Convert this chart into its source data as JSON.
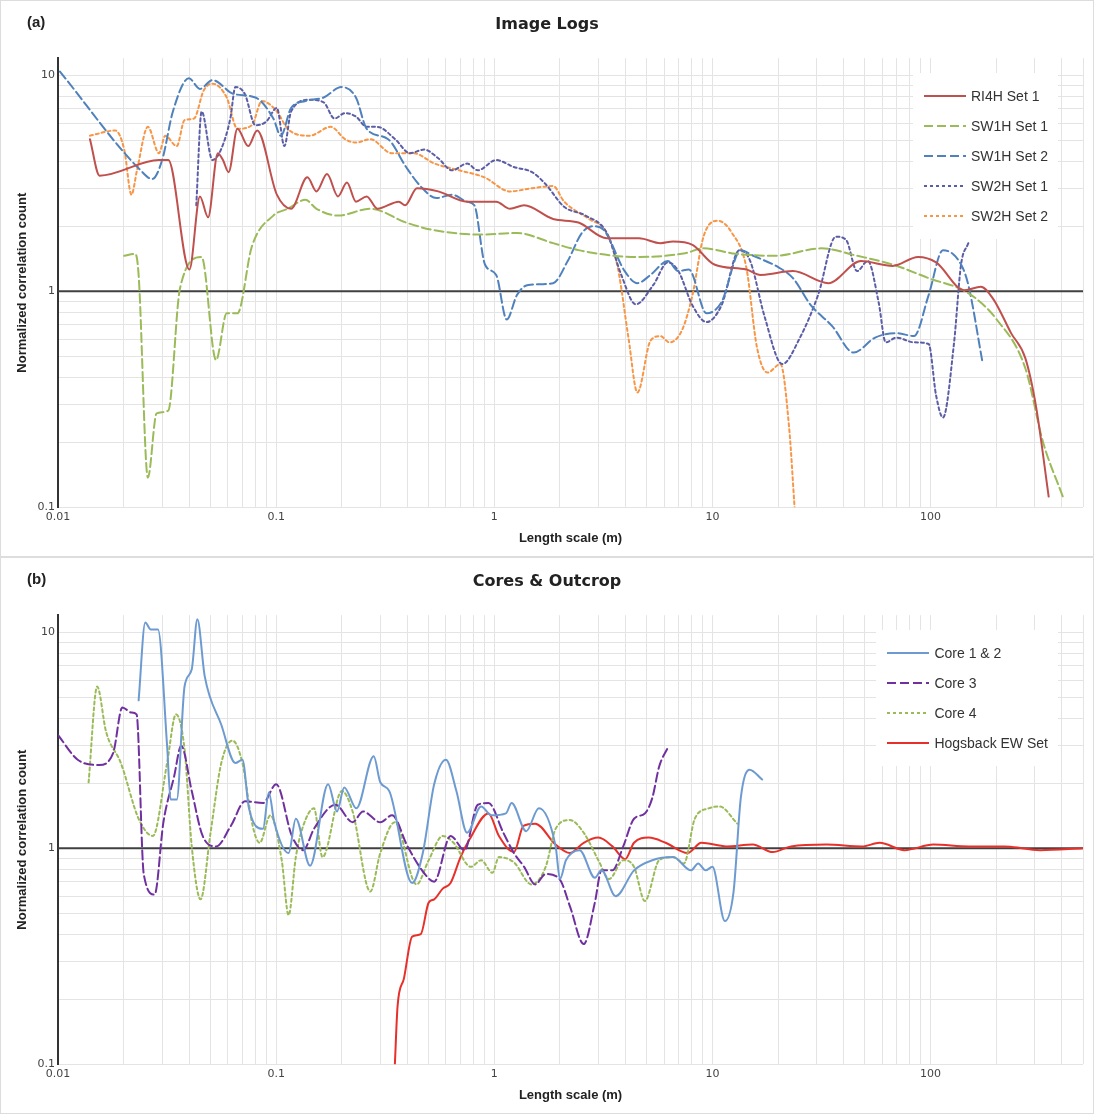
{
  "chart_data": [
    {
      "type": "line",
      "title": "Image Logs",
      "annotations": [
        "(a)"
      ],
      "xlabel": "Length scale (m)",
      "ylabel": "Normalized correlation count",
      "log": "xy",
      "xlim": [
        0.01,
        500
      ],
      "ylim": [
        0.1,
        12
      ],
      "xticks": [
        0.01,
        0.1,
        1,
        10,
        100
      ],
      "yticks": [
        0.1,
        1,
        10
      ],
      "grid": true,
      "legend": "top right",
      "ref_lines": [
        {
          "axis": "y",
          "value": 1,
          "color": "#404040"
        }
      ],
      "series": [
        {
          "name": "RI4H Set 1",
          "color": "#c0504d",
          "line_style": "solid",
          "x": [
            0.014,
            0.0155,
            0.029,
            0.032,
            0.04,
            0.0447,
            0.0487,
            0.054,
            0.057,
            0.0605,
            0.0664,
            0.0744,
            0.0818,
            0.1007,
            0.117,
            0.139,
            0.153,
            0.171,
            0.192,
            0.211,
            0.232,
            0.26,
            0.291,
            0.365,
            0.39,
            0.442,
            0.553,
            0.75,
            1.02,
            1.18,
            1.37,
            1.86,
            2.43,
            3.28,
            4.61,
            5.78,
            6.6,
            8.1,
            10.2,
            14.3,
            16.6,
            23.4,
            34,
            47.9,
            67,
            87.7,
            106,
            143,
            170,
            194,
            234,
            272,
            305,
            348
          ],
          "values": [
            5.06,
            3.43,
            4.05,
            4.05,
            1.26,
            2.75,
            2.2,
            4.36,
            4.05,
            3.56,
            5.65,
            4.7,
            5.55,
            2.8,
            2.41,
            3.37,
            2.9,
            3.49,
            2.75,
            3.19,
            2.6,
            2.75,
            2.41,
            2.6,
            2.5,
            3.0,
            2.9,
            2.6,
            2.6,
            2.41,
            2.5,
            2.16,
            2.08,
            1.76,
            1.76,
            1.67,
            1.7,
            1.64,
            1.33,
            1.26,
            1.19,
            1.24,
            1.09,
            1.38,
            1.31,
            1.44,
            1.36,
            1.01,
            1.05,
            0.92,
            0.64,
            0.49,
            0.29,
            0.112
          ]
        },
        {
          "name": "SW1H Set 1",
          "color": "#9bbb59",
          "line_style": "dashed",
          "x": [
            0.0201,
            0.0226,
            0.0234,
            0.0258,
            0.0283,
            0.032,
            0.0362,
            0.0455,
            0.053,
            0.0593,
            0.0664,
            0.0773,
            0.097,
            0.113,
            0.136,
            0.153,
            0.192,
            0.27,
            0.394,
            0.514,
            0.873,
            1.27,
            1.86,
            2.43,
            3.54,
            4.45,
            7.5,
            9.1,
            12.8,
            19.4,
            31.6,
            46,
            67,
            98,
            149,
            201,
            272,
            328,
            404
          ],
          "values": [
            1.46,
            1.49,
            1.19,
            0.137,
            0.272,
            0.28,
            1.03,
            1.44,
            0.48,
            0.79,
            0.79,
            1.61,
            2.24,
            2.41,
            2.65,
            2.41,
            2.24,
            2.41,
            2.08,
            1.93,
            1.83,
            1.86,
            1.67,
            1.55,
            1.46,
            1.44,
            1.5,
            1.58,
            1.49,
            1.46,
            1.58,
            1.46,
            1.33,
            1.15,
            0.98,
            0.74,
            0.44,
            0.2,
            0.112
          ]
        },
        {
          "name": "SW1H Set 2",
          "color": "#4f81bd",
          "line_style": "dashed",
          "x": [
            0.0102,
            0.0239,
            0.027,
            0.03,
            0.0336,
            0.0398,
            0.0447,
            0.051,
            0.064,
            0.0803,
            0.097,
            0.105,
            0.117,
            0.136,
            0.165,
            0.199,
            0.232,
            0.26,
            0.326,
            0.394,
            0.458,
            0.543,
            0.64,
            0.75,
            0.81,
            0.906,
            1.02,
            1.14,
            1.27,
            1.43,
            1.86,
            2.17,
            2.52,
            2.83,
            3.16,
            3.96,
            4.53,
            5.2,
            6.24,
            6.98,
            7.8,
            9.4,
            11,
            13.5,
            15.4,
            20.1,
            23.4,
            28.3,
            35.4,
            44.4,
            55.7,
            69.8,
            84,
            98,
            114,
            138,
            149,
            173
          ],
          "values": [
            10.4,
            3.63,
            3.31,
            4.05,
            6.8,
            9.68,
            8.65,
            9.5,
            8.19,
            7.89,
            6.31,
            5.25,
            7.06,
            7.6,
            7.89,
            8.82,
            7.89,
            5.65,
            5.06,
            3.76,
            3.07,
            2.7,
            2.8,
            2.6,
            2.5,
            1.33,
            1.19,
            0.74,
            0.96,
            1.07,
            1.09,
            1.38,
            1.86,
            2.0,
            1.93,
            1.24,
            1.09,
            1.19,
            1.38,
            1.24,
            1.26,
            0.79,
            0.89,
            1.55,
            1.46,
            1.29,
            1.15,
            0.86,
            0.69,
            0.52,
            0.61,
            0.64,
            0.62,
            0.96,
            1.55,
            1.33,
            1.07,
            0.47
          ]
        },
        {
          "name": "SW2H Set 1",
          "color": "#5b5ea6",
          "line_style": "dotted",
          "x": [
            0.043,
            0.0455,
            0.051,
            0.0558,
            0.0616,
            0.065,
            0.0718,
            0.0803,
            0.09,
            0.1007,
            0.109,
            0.117,
            0.142,
            0.165,
            0.185,
            0.207,
            0.232,
            0.26,
            0.291,
            0.351,
            0.41,
            0.477,
            0.553,
            0.64,
            0.75,
            0.84,
            1.02,
            1.23,
            1.49,
            1.72,
            2.09,
            2.62,
            3.28,
            3.82,
            4.45,
            5.36,
            6.24,
            6.98,
            8.1,
            9.4,
            11,
            13.3,
            14.9,
            17.3,
            20.9,
            25.2,
            30.5,
            36.8,
            41,
            46,
            51.6,
            57.8,
            62.3,
            69.8,
            84,
            98,
            106,
            114,
            128,
            138,
            149
          ],
          "values": [
            2.5,
            6.8,
            4.05,
            4.53,
            6.31,
            8.82,
            8.19,
            5.87,
            6.1,
            7.06,
            4.7,
            6.8,
            7.7,
            7.5,
            6.31,
            6.68,
            6.44,
            5.77,
            5.77,
            5.06,
            4.36,
            4.53,
            4.13,
            3.63,
            3.9,
            3.63,
            4.05,
            3.76,
            3.56,
            3.13,
            2.46,
            2.24,
            1.86,
            1.19,
            0.87,
            1.07,
            1.36,
            1.24,
            0.86,
            0.72,
            0.86,
            1.55,
            1.38,
            0.77,
            0.46,
            0.61,
            0.96,
            1.79,
            1.73,
            1.24,
            1.38,
            0.89,
            0.58,
            0.61,
            0.58,
            0.57,
            0.33,
            0.26,
            0.57,
            1.33,
            1.67
          ]
        },
        {
          "name": "SW2H Set 2",
          "color": "#f79646",
          "line_style": "dotted",
          "x": [
            0.014,
            0.0183,
            0.0201,
            0.0217,
            0.023,
            0.0258,
            0.029,
            0.031,
            0.035,
            0.038,
            0.042,
            0.0465,
            0.051,
            0.0593,
            0.0664,
            0.0773,
            0.086,
            0.1007,
            0.113,
            0.142,
            0.178,
            0.207,
            0.232,
            0.27,
            0.338,
            0.425,
            0.533,
            0.69,
            0.9,
            1.18,
            1.49,
            1.86,
            2.09,
            2.72,
            3.28,
            3.68,
            4.12,
            4.53,
            5.2,
            5.78,
            6.35,
            7.25,
            8.1,
            9.1,
            10.6,
            12.3,
            14.3,
            16,
            17.9,
            20.5,
            22.5,
            23.8
          ],
          "values": [
            5.25,
            5.55,
            4.53,
            2.8,
            3.63,
            5.77,
            4.36,
            5.25,
            4.7,
            6.2,
            6.31,
            8.5,
            9.15,
            7.89,
            5.65,
            5.87,
            7.6,
            6.8,
            5.65,
            5.25,
            5.77,
            5.06,
            4.88,
            5.06,
            4.36,
            4.36,
            3.9,
            3.63,
            3.37,
            2.9,
            3.0,
            3.07,
            2.6,
            2.16,
            1.86,
            1.29,
            0.61,
            0.34,
            0.59,
            0.62,
            0.58,
            0.66,
            0.96,
            1.79,
            2.12,
            1.86,
            1.29,
            0.55,
            0.42,
            0.46,
            0.23,
            0.1
          ]
        }
      ]
    },
    {
      "type": "line",
      "title": "Cores & Outcrop",
      "annotations": [
        "(b)"
      ],
      "xlabel": "Length scale (m)",
      "ylabel": "Normalized correlation count",
      "log": "xy",
      "xlim": [
        0.01,
        500
      ],
      "ylim": [
        0.1,
        12
      ],
      "xticks": [
        0.01,
        0.1,
        1,
        10,
        100
      ],
      "yticks": [
        0.1,
        1,
        10
      ],
      "grid": true,
      "legend": "top right",
      "ref_lines": [
        {
          "axis": "y",
          "value": 1,
          "color": "#404040"
        }
      ],
      "series": [
        {
          "name": "Core 1 & 2",
          "color": "#6d9bd1",
          "line_style": "solid",
          "x": [
            0.0234,
            0.0251,
            0.0266,
            0.0287,
            0.0316,
            0.0328,
            0.035,
            0.038,
            0.041,
            0.0435,
            0.047,
            0.056,
            0.065,
            0.07,
            0.075,
            0.087,
            0.0925,
            0.098,
            0.114,
            0.123,
            0.143,
            0.173,
            0.19,
            0.205,
            0.233,
            0.28,
            0.3,
            0.33,
            0.42,
            0.47,
            0.53,
            0.6,
            0.67,
            0.75,
            0.87,
            0.97,
            1.13,
            1.2,
            1.4,
            1.6,
            1.91,
            2.0,
            2.13,
            2.46,
            2.89,
            3.1,
            3.6,
            4.37,
            5.3,
            6.6,
            7.98,
            8.6,
            9.3,
            10,
            11.4,
            12.5,
            13.5,
            14.8,
            16.9
          ],
          "values": [
            4.84,
            11.1,
            10.3,
            10.3,
            2.99,
            1.68,
            1.68,
            5.61,
            6.74,
            11.5,
            6.27,
            3.73,
            2.48,
            2.57,
            1.53,
            1.23,
            1.81,
            1.32,
            0.95,
            1.37,
            0.83,
            1.98,
            1.48,
            1.91,
            1.53,
            2.67,
            2.02,
            1.84,
            0.69,
            0.95,
            1.98,
            2.57,
            1.84,
            1.18,
            1.56,
            1.42,
            1.45,
            1.62,
            1.2,
            1.53,
            1.02,
            0.72,
            0.88,
            0.98,
            0.73,
            0.79,
            0.6,
            0.79,
            0.88,
            0.91,
            0.79,
            0.85,
            0.79,
            0.82,
            0.46,
            0.63,
            1.72,
            2.31,
            2.08
          ]
        },
        {
          "name": "Core 3",
          "color": "#7030a0",
          "line_style": "dashed",
          "x": [
            0.01,
            0.0123,
            0.0154,
            0.0179,
            0.0197,
            0.0217,
            0.0229,
            0.0247,
            0.0277,
            0.0304,
            0.034,
            0.0367,
            0.041,
            0.046,
            0.053,
            0.062,
            0.072,
            0.087,
            0.1,
            0.118,
            0.133,
            0.149,
            0.187,
            0.224,
            0.25,
            0.3,
            0.34,
            0.4,
            0.48,
            0.53,
            0.63,
            0.73,
            0.84,
            0.94,
            1.1,
            1.23,
            1.37,
            1.54,
            1.72,
            1.99,
            2.22,
            2.57,
            2.89,
            3.1,
            3.48,
            3.9,
            4.37,
            4.9,
            5.3,
            5.7,
            6.25
          ],
          "values": [
            3.34,
            2.57,
            2.43,
            2.77,
            4.49,
            4.25,
            4.17,
            0.76,
            0.61,
            1.32,
            2.14,
            2.98,
            1.84,
            1.14,
            1.02,
            1.27,
            1.65,
            1.62,
            1.98,
            1.14,
            0.98,
            1.23,
            1.59,
            1.32,
            1.48,
            1.32,
            1.42,
            1.02,
            0.76,
            0.7,
            1.14,
            0.98,
            1.59,
            1.62,
            1.18,
            0.95,
            0.82,
            0.68,
            0.76,
            0.72,
            0.54,
            0.36,
            0.56,
            0.79,
            0.79,
            1.02,
            1.37,
            1.45,
            1.71,
            2.39,
            2.93
          ]
        },
        {
          "name": "Core 4",
          "color": "#9bbb59",
          "line_style": "dotted",
          "x": [
            0.0138,
            0.0151,
            0.0166,
            0.0194,
            0.0234,
            0.0272,
            0.0316,
            0.0347,
            0.038,
            0.041,
            0.045,
            0.05,
            0.056,
            0.063,
            0.07,
            0.078,
            0.084,
            0.094,
            0.106,
            0.114,
            0.123,
            0.133,
            0.149,
            0.163,
            0.2,
            0.224,
            0.27,
            0.3,
            0.35,
            0.44,
            0.5,
            0.58,
            0.65,
            0.78,
            0.87,
            0.98,
            1.05,
            1.23,
            1.48,
            1.72,
            1.91,
            2.22,
            2.57,
            3.0,
            3.36,
            3.9,
            4.37,
            4.9,
            5.7,
            6.6,
            7.4,
            8.3,
            9.6,
            10.8,
            13.0
          ],
          "values": [
            2.02,
            5.61,
            3.46,
            2.48,
            1.37,
            1.14,
            2.48,
            4.17,
            2.87,
            1.02,
            0.58,
            1.18,
            2.48,
            3.15,
            2.48,
            1.27,
            1.06,
            1.42,
            0.88,
            0.49,
            0.91,
            1.27,
            1.53,
            0.91,
            1.84,
            1.48,
            0.63,
            0.95,
            1.32,
            0.68,
            0.88,
            1.14,
            1.06,
            0.82,
            0.88,
            0.77,
            0.91,
            0.86,
            0.68,
            0.82,
            1.23,
            1.35,
            1.18,
            0.88,
            0.72,
            0.88,
            0.82,
            0.57,
            0.88,
            0.91,
            0.85,
            1.37,
            1.53,
            1.56,
            1.3
          ]
        },
        {
          "name": "Hogsback EW Set",
          "color": "#e8302a",
          "line_style": "solid",
          "x": [
            0.35,
            0.36,
            0.385,
            0.42,
            0.46,
            0.5,
            0.53,
            0.58,
            0.63,
            0.7,
            0.77,
            0.94,
            1.05,
            1.23,
            1.36,
            1.54,
            1.91,
            2.22,
            2.57,
            3.0,
            3.48,
            3.98,
            4.37,
            5.1,
            6.1,
            7.7,
            8.9,
            11.6,
            15.3,
            18.9,
            22.9,
            33.3,
            48.5,
            58.5,
            76,
            103,
            150,
            218,
            318,
            500
          ],
          "values": [
            0.1,
            0.185,
            0.249,
            0.39,
            0.4,
            0.56,
            0.58,
            0.65,
            0.69,
            0.91,
            1.1,
            1.45,
            1.14,
            0.96,
            1.27,
            1.3,
            1.04,
            0.95,
            1.06,
            1.12,
            1.02,
            0.89,
            1.06,
            1.12,
            1.06,
            0.95,
            1.06,
            1.02,
            1.04,
            0.96,
            1.02,
            1.04,
            1.02,
            1.06,
            0.98,
            1.04,
            1.02,
            1.02,
            0.98,
            1.0
          ]
        }
      ]
    }
  ]
}
